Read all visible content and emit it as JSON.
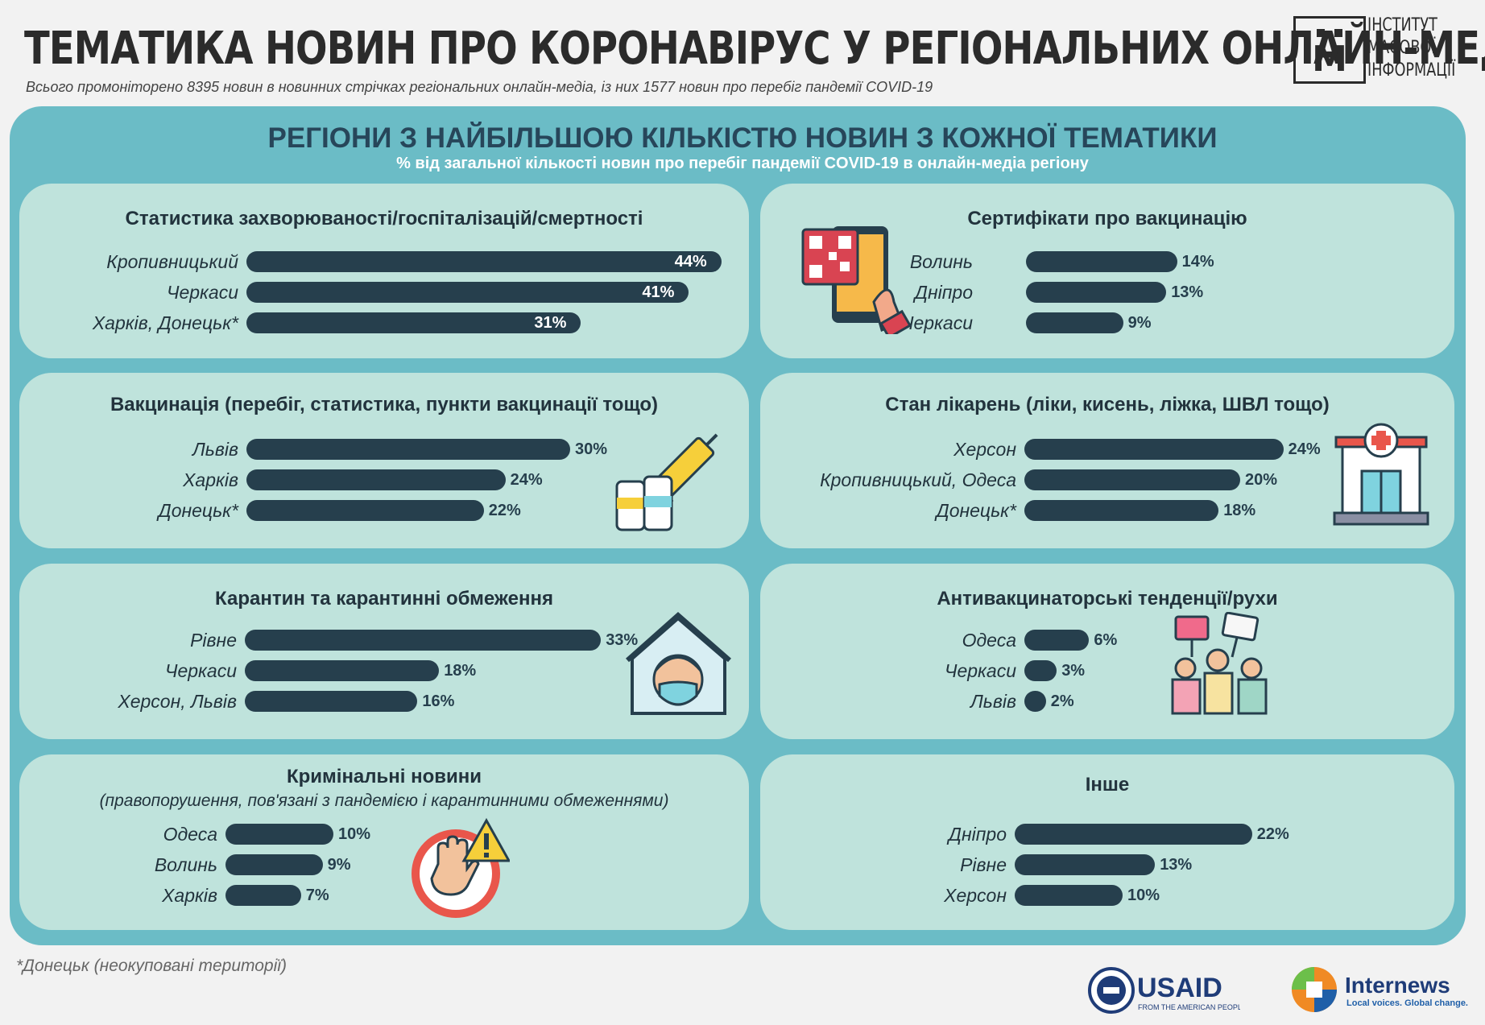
{
  "header": {
    "title": "ТЕМАТИКА НОВИН ПРО КОРОНАВІРУС У РЕГІОНАЛЬНИХ ОНЛАЙН-МЕДІА",
    "subtitle": "Всього промоніторено 8395 новин в новинних стрічках регіональних онлайн-медіа, із них 1577 новин про перебіг пандемії COVID-19",
    "logo_lines": [
      "ІНСТИТУТ",
      "МАСОВОЇ",
      "ІНФОРМАЦІЇ"
    ],
    "logo_letter": "М"
  },
  "panel": {
    "title": "РЕГІОНИ З НАЙБІЛЬШОЮ КІЛЬКІСТЮ НОВИН З КОЖНОЇ ТЕМАТИКИ",
    "subtitle": "% від загальної кількості новин про перебіг пандемії COVID-19 в онлайн-медіа регіону"
  },
  "chart_data": [
    {
      "type": "bar",
      "title": "Статистика захворюваності/госпіталізацій/смертності",
      "categories": [
        "Кропивницький",
        "Черкаси",
        "Харків, Донецьк*"
      ],
      "values": [
        44,
        41,
        31
      ],
      "unit": "%"
    },
    {
      "type": "bar",
      "title": "Сертифікати про вакцинацію",
      "categories": [
        "Волинь",
        "Дніпро",
        "Черкаси"
      ],
      "values": [
        14,
        13,
        9
      ],
      "unit": "%"
    },
    {
      "type": "bar",
      "title": "Вакцинація (перебіг, статистика, пункти вакцинації тощо)",
      "categories": [
        "Львів",
        "Харків",
        "Донецьк*"
      ],
      "values": [
        30,
        24,
        22
      ],
      "unit": "%"
    },
    {
      "type": "bar",
      "title": "Стан лікарень (ліки, кисень, ліжка, ШВЛ тощо)",
      "categories": [
        "Херсон",
        "Кропивницький, Одеса",
        "Донецьк*"
      ],
      "values": [
        24,
        20,
        18
      ],
      "unit": "%"
    },
    {
      "type": "bar",
      "title": "Карантин та карантинні обмеження",
      "categories": [
        "Рівне",
        "Черкаси",
        "Херсон, Львів"
      ],
      "values": [
        33,
        18,
        16
      ],
      "unit": "%"
    },
    {
      "type": "bar",
      "title": "Антивакцинаторські тенденції/рухи",
      "categories": [
        "Одеса",
        "Черкаси",
        "Львів"
      ],
      "values": [
        6,
        3,
        2
      ],
      "unit": "%"
    },
    {
      "type": "bar",
      "title": "Кримінальні новини",
      "subtitle": "(правопорушення, пов'язані з пандемією і карантинними обмеженнями)",
      "categories": [
        "Одеса",
        "Волинь",
        "Харків"
      ],
      "values": [
        10,
        9,
        7
      ],
      "unit": "%"
    },
    {
      "type": "bar",
      "title": "Інше",
      "categories": [
        "Дніпро",
        "Рівне",
        "Херсон"
      ],
      "values": [
        22,
        13,
        10
      ],
      "unit": "%"
    }
  ],
  "icons": [
    "qr-phone-icon",
    "vaccine-icon",
    "hospital-icon",
    "quarantine-house-icon",
    "protest-icon",
    "stop-hand-warning-icon"
  ],
  "footnote": "*Донецьк (неокуповані території)",
  "logos": {
    "usaid": "USAID",
    "usaid_tag": "FROM THE AMERICAN PEOPLE",
    "internews": "Internews",
    "internews_tag": "Local voices. Global change."
  },
  "colors": {
    "panel": "#6bbcc6",
    "card": "#bfe3dc",
    "bar": "#263f4d",
    "panel_title": "#27465a"
  }
}
